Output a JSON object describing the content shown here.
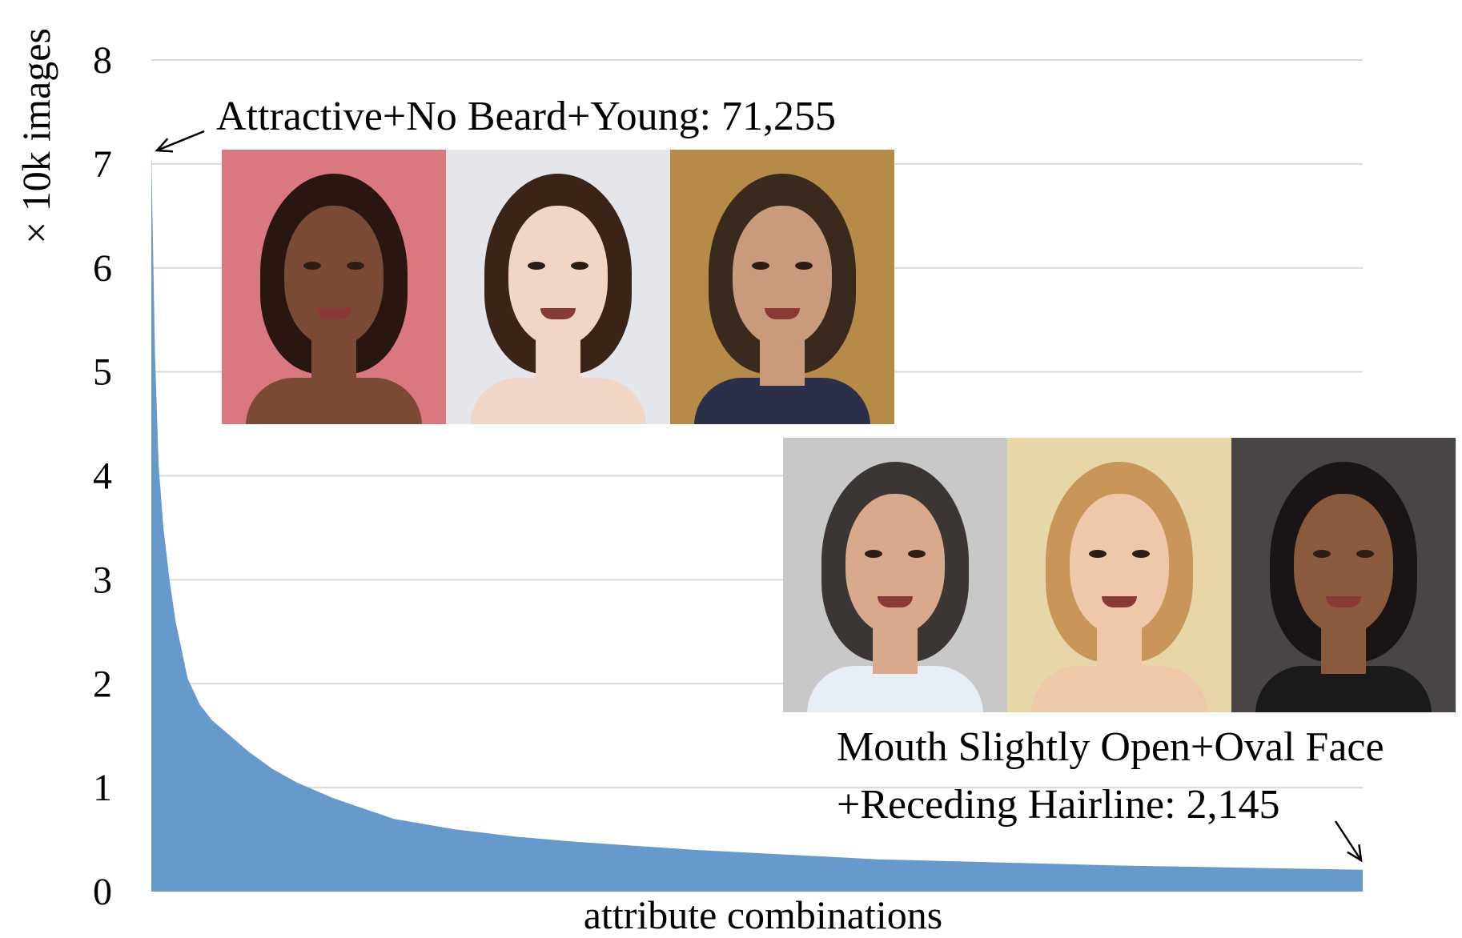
{
  "chart_data": {
    "type": "area",
    "ylabel": "× 10k images",
    "xlabel": "attribute combinations",
    "ylim": [
      0,
      8
    ],
    "yticks": [
      "0",
      "1",
      "2",
      "3",
      "4",
      "5",
      "6",
      "7",
      "8"
    ],
    "grid": true,
    "series_color": "#6699cc",
    "x": [
      0,
      0.003,
      0.006,
      0.01,
      0.015,
      0.02,
      0.03,
      0.04,
      0.05,
      0.06,
      0.08,
      0.1,
      0.12,
      0.15,
      0.18,
      0.2,
      0.25,
      0.3,
      0.35,
      0.4,
      0.45,
      0.5,
      0.55,
      0.6,
      0.7,
      0.8,
      0.9,
      1.0
    ],
    "y": [
      7.13,
      5.2,
      4.1,
      3.5,
      3.0,
      2.6,
      2.05,
      1.8,
      1.65,
      1.55,
      1.35,
      1.18,
      1.05,
      0.9,
      0.78,
      0.7,
      0.6,
      0.53,
      0.48,
      0.44,
      0.4,
      0.37,
      0.34,
      0.31,
      0.28,
      0.25,
      0.23,
      0.21
    ],
    "annotations": [
      {
        "text": "Attractive+No Beard+Young: 71,255",
        "arrow_to": [
          0,
          7.13
        ]
      },
      {
        "text": [
          "Mouth Slightly Open+Oval Face",
          "+Receding Hairline: 2,145"
        ],
        "arrow_to": [
          1.0,
          0.21
        ]
      }
    ]
  },
  "photos": {
    "top_row": [
      {
        "icon": "woman-long-dark-hair-photo",
        "bg": "#d9787f",
        "skin": "#7a4a35",
        "hair": "#2a1610",
        "shirt": "#7a4a35"
      },
      {
        "icon": "woman-bangs-smiling-photo",
        "bg": "#e4e6ec",
        "skin": "#f1d6c6",
        "hair": "#3a2418",
        "shirt": "#f1d6c6"
      },
      {
        "icon": "young-man-curly-hair-photo",
        "bg": "#b58b47",
        "skin": "#c99a7c",
        "hair": "#3a2a1e",
        "shirt": "#2b2f4a"
      }
    ],
    "bottom_row": [
      {
        "icon": "smiling-man-receding-hairline-photo",
        "bg": "#c8c8c8",
        "skin": "#d9a98d",
        "hair": "#3b3533",
        "shirt": "#e8eef5"
      },
      {
        "icon": "smiling-blonde-woman-photo",
        "bg": "#e6d6a8",
        "skin": "#eec8a8",
        "hair": "#c9965a",
        "shirt": "#eec8a8"
      },
      {
        "icon": "smiling-man-short-hair-photo",
        "bg": "#4a4545",
        "skin": "#8a5a3e",
        "hair": "#1a1414",
        "shirt": "#1a1a1a"
      }
    ]
  }
}
